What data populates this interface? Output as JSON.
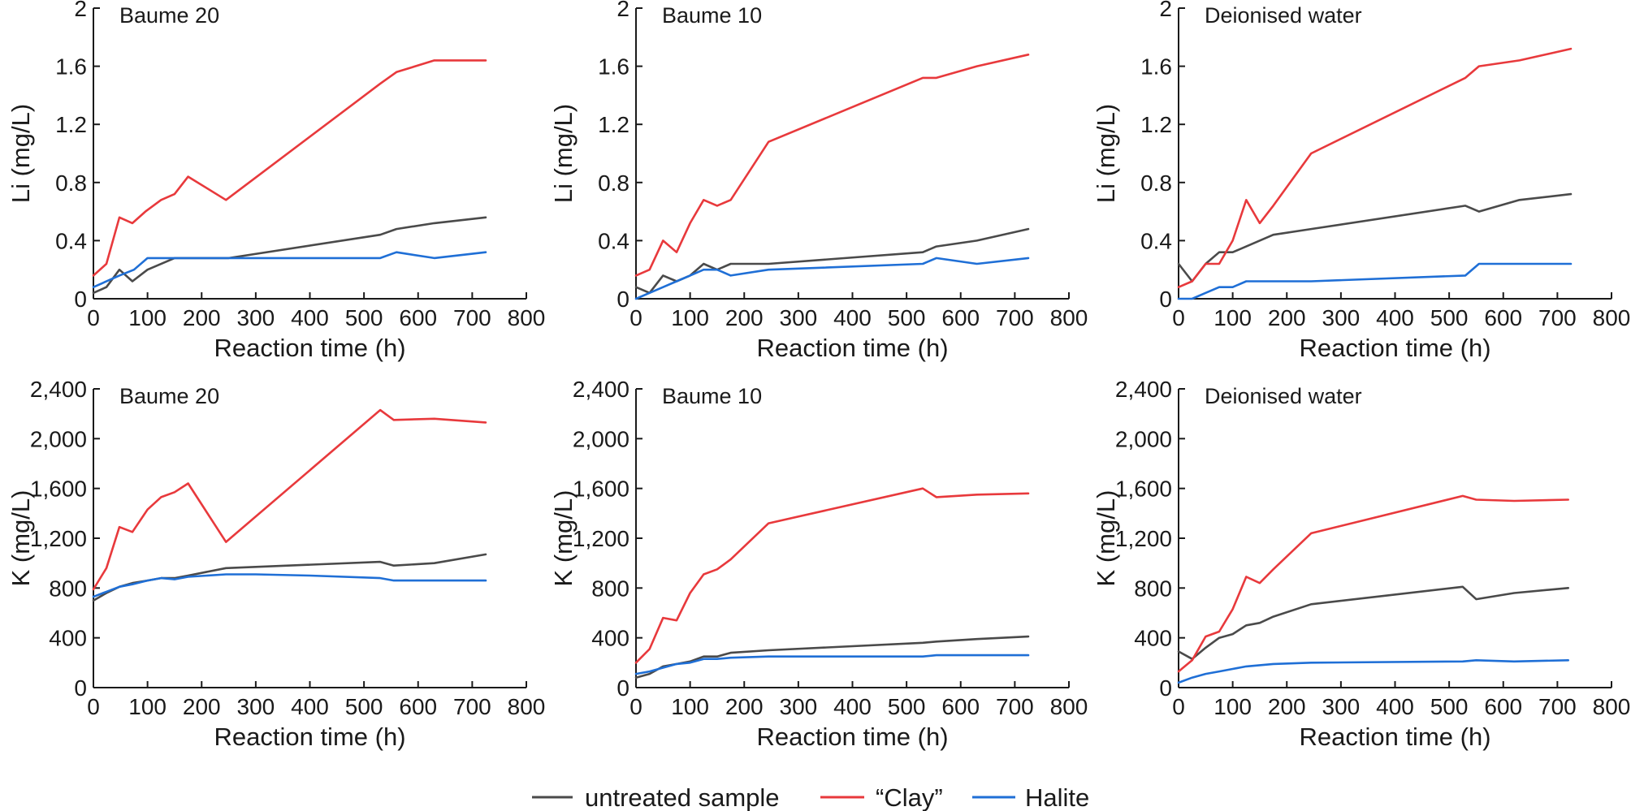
{
  "colors": {
    "untreated": "#4a4a4a",
    "clay": "#e8393c",
    "halite": "#1f6fd6",
    "axis": "#1a1a1a"
  },
  "legend": [
    {
      "key": "untreated",
      "label": "untreated sample"
    },
    {
      "key": "clay",
      "label": "“Clay”"
    },
    {
      "key": "halite",
      "label": "Halite"
    }
  ],
  "chart_data": [
    {
      "type": "line",
      "title": "Baume 20",
      "xlabel": "Reaction time (h)",
      "ylabel": "Li (mg/L)",
      "xlim": [
        0,
        800
      ],
      "ylim": [
        0,
        2
      ],
      "xticks": [
        "0",
        "100",
        "200",
        "300",
        "400",
        "500",
        "600",
        "700",
        "800"
      ],
      "yticks": [
        "0",
        "0.4",
        "0.8",
        "1.2",
        "1.6",
        "2"
      ],
      "series": [
        {
          "name": "untreated sample",
          "key": "untreated",
          "x": [
            0,
            24,
            48,
            72,
            100,
            150,
            250,
            530,
            560,
            630,
            725
          ],
          "y": [
            0.04,
            0.08,
            0.2,
            0.12,
            0.2,
            0.28,
            0.28,
            0.44,
            0.48,
            0.52,
            0.56
          ]
        },
        {
          "name": "“Clay”",
          "key": "clay",
          "x": [
            0,
            24,
            48,
            72,
            96,
            125,
            150,
            175,
            245,
            530,
            560,
            630,
            725
          ],
          "y": [
            0.16,
            0.24,
            0.56,
            0.52,
            0.6,
            0.68,
            0.72,
            0.84,
            0.68,
            1.48,
            1.56,
            1.64,
            1.64
          ]
        },
        {
          "name": "Halite",
          "key": "halite",
          "x": [
            0,
            48,
            75,
            100,
            150,
            250,
            530,
            560,
            630,
            725
          ],
          "y": [
            0.08,
            0.16,
            0.2,
            0.28,
            0.28,
            0.28,
            0.28,
            0.32,
            0.28,
            0.32
          ]
        }
      ]
    },
    {
      "type": "line",
      "title": "Baume 10",
      "xlabel": "Reaction time (h)",
      "ylabel": "Li (mg/L)",
      "xlim": [
        0,
        800
      ],
      "ylim": [
        0,
        2
      ],
      "xticks": [
        "0",
        "100",
        "200",
        "300",
        "400",
        "500",
        "600",
        "700",
        "800"
      ],
      "yticks": [
        "0",
        "0.4",
        "0.8",
        "1.2",
        "1.6",
        "2"
      ],
      "series": [
        {
          "name": "untreated sample",
          "key": "untreated",
          "x": [
            0,
            25,
            50,
            75,
            100,
            125,
            150,
            175,
            245,
            530,
            555,
            630,
            725
          ],
          "y": [
            0.08,
            0.04,
            0.16,
            0.12,
            0.16,
            0.24,
            0.2,
            0.24,
            0.24,
            0.32,
            0.36,
            0.4,
            0.48
          ]
        },
        {
          "name": "“Clay”",
          "key": "clay",
          "x": [
            0,
            25,
            50,
            75,
            100,
            125,
            150,
            175,
            245,
            530,
            555,
            630,
            725
          ],
          "y": [
            0.16,
            0.2,
            0.4,
            0.32,
            0.52,
            0.68,
            0.64,
            0.68,
            1.08,
            1.52,
            1.52,
            1.6,
            1.68
          ]
        },
        {
          "name": "Halite",
          "key": "halite",
          "x": [
            0,
            25,
            50,
            75,
            100,
            125,
            150,
            175,
            245,
            530,
            555,
            630,
            725
          ],
          "y": [
            0.0,
            0.04,
            0.08,
            0.12,
            0.16,
            0.2,
            0.2,
            0.16,
            0.2,
            0.24,
            0.28,
            0.24,
            0.28
          ]
        }
      ]
    },
    {
      "type": "line",
      "title": "Deionised water",
      "xlabel": "Reaction time (h)",
      "ylabel": "Li (mg/L)",
      "xlim": [
        0,
        800
      ],
      "ylim": [
        0,
        2
      ],
      "xticks": [
        "0",
        "100",
        "200",
        "300",
        "400",
        "500",
        "600",
        "700",
        "800"
      ],
      "yticks": [
        "0",
        "0.4",
        "0.8",
        "1.2",
        "1.6",
        "2"
      ],
      "series": [
        {
          "name": "untreated sample",
          "key": "untreated",
          "x": [
            0,
            25,
            50,
            75,
            100,
            125,
            175,
            245,
            530,
            555,
            630,
            725
          ],
          "y": [
            0.24,
            0.12,
            0.24,
            0.32,
            0.32,
            0.36,
            0.44,
            0.48,
            0.64,
            0.6,
            0.68,
            0.72
          ]
        },
        {
          "name": "“Clay”",
          "key": "clay",
          "x": [
            0,
            25,
            50,
            75,
            100,
            125,
            150,
            175,
            245,
            530,
            555,
            630,
            725
          ],
          "y": [
            0.08,
            0.12,
            0.24,
            0.24,
            0.4,
            0.68,
            0.52,
            0.64,
            1.0,
            1.52,
            1.6,
            1.64,
            1.72
          ]
        },
        {
          "name": "Halite",
          "key": "halite",
          "x": [
            0,
            25,
            50,
            75,
            100,
            125,
            150,
            175,
            245,
            530,
            555,
            630,
            725
          ],
          "y": [
            0.0,
            0.0,
            0.04,
            0.08,
            0.08,
            0.12,
            0.12,
            0.12,
            0.12,
            0.16,
            0.24,
            0.24,
            0.24
          ]
        }
      ]
    },
    {
      "type": "line",
      "title": "Baume 20",
      "xlabel": "Reaction time (h)",
      "ylabel": "K (mg/L)",
      "xlim": [
        0,
        800
      ],
      "ylim": [
        0,
        2400
      ],
      "xticks": [
        "0",
        "100",
        "200",
        "300",
        "400",
        "500",
        "600",
        "700",
        "800"
      ],
      "yticks": [
        "0",
        "400",
        "800",
        "1,200",
        "1,600",
        "2,000",
        "2,400"
      ],
      "series": [
        {
          "name": "untreated sample",
          "key": "untreated",
          "x": [
            0,
            24,
            48,
            72,
            100,
            125,
            150,
            175,
            245,
            530,
            555,
            630,
            725
          ],
          "y": [
            700,
            760,
            810,
            840,
            860,
            880,
            880,
            900,
            960,
            1010,
            980,
            1000,
            1070
          ]
        },
        {
          "name": "“Clay”",
          "key": "clay",
          "x": [
            0,
            24,
            48,
            72,
            100,
            125,
            150,
            175,
            245,
            530,
            555,
            630,
            725
          ],
          "y": [
            790,
            960,
            1290,
            1250,
            1430,
            1530,
            1570,
            1640,
            1170,
            2230,
            2150,
            2160,
            2130
          ]
        },
        {
          "name": "Halite",
          "key": "halite",
          "x": [
            0,
            24,
            48,
            72,
            100,
            125,
            150,
            175,
            245,
            300,
            400,
            530,
            555,
            630,
            725
          ],
          "y": [
            730,
            770,
            810,
            830,
            860,
            880,
            870,
            890,
            910,
            910,
            900,
            880,
            860,
            860,
            860
          ]
        }
      ]
    },
    {
      "type": "line",
      "title": "Baume 10",
      "xlabel": "Reaction time (h)",
      "ylabel": "K (mg/L)",
      "xlim": [
        0,
        800
      ],
      "ylim": [
        0,
        2400
      ],
      "xticks": [
        "0",
        "100",
        "200",
        "300",
        "400",
        "500",
        "600",
        "700",
        "800"
      ],
      "yticks": [
        "0",
        "400",
        "800",
        "1,200",
        "1,600",
        "2,000",
        "2,400"
      ],
      "series": [
        {
          "name": "untreated sample",
          "key": "untreated",
          "x": [
            0,
            25,
            50,
            75,
            100,
            125,
            150,
            175,
            245,
            530,
            555,
            630,
            725
          ],
          "y": [
            80,
            110,
            170,
            190,
            210,
            250,
            250,
            280,
            300,
            360,
            370,
            390,
            410
          ]
        },
        {
          "name": "“Clay”",
          "key": "clay",
          "x": [
            0,
            25,
            50,
            75,
            100,
            125,
            150,
            175,
            245,
            530,
            555,
            630,
            725
          ],
          "y": [
            200,
            310,
            560,
            540,
            760,
            910,
            950,
            1030,
            1320,
            1600,
            1530,
            1550,
            1560
          ]
        },
        {
          "name": "Halite",
          "key": "halite",
          "x": [
            0,
            25,
            50,
            75,
            100,
            125,
            150,
            175,
            245,
            530,
            555,
            630,
            725
          ],
          "y": [
            110,
            130,
            160,
            190,
            200,
            230,
            230,
            240,
            250,
            250,
            260,
            260,
            260
          ]
        }
      ]
    },
    {
      "type": "line",
      "title": "Deionised water",
      "xlabel": "Reaction time (h)",
      "ylabel": "K (mg/L)",
      "xlim": [
        0,
        800
      ],
      "ylim": [
        0,
        2400
      ],
      "xticks": [
        "0",
        "100",
        "200",
        "300",
        "400",
        "500",
        "600",
        "700",
        "800"
      ],
      "yticks": [
        "0",
        "400",
        "800",
        "1,200",
        "1,600",
        "2,000",
        "2,400"
      ],
      "series": [
        {
          "name": "untreated sample",
          "key": "untreated",
          "x": [
            0,
            25,
            50,
            75,
            100,
            125,
            150,
            175,
            245,
            525,
            550,
            620,
            720
          ],
          "y": [
            290,
            230,
            320,
            400,
            430,
            500,
            520,
            570,
            670,
            810,
            710,
            760,
            800
          ]
        },
        {
          "name": "“Clay”",
          "key": "clay",
          "x": [
            0,
            25,
            50,
            75,
            100,
            125,
            150,
            175,
            245,
            525,
            550,
            620,
            720
          ],
          "y": [
            130,
            220,
            410,
            450,
            630,
            890,
            840,
            950,
            1240,
            1540,
            1510,
            1500,
            1510
          ]
        },
        {
          "name": "Halite",
          "key": "halite",
          "x": [
            0,
            25,
            50,
            75,
            100,
            125,
            150,
            175,
            245,
            525,
            550,
            620,
            720
          ],
          "y": [
            40,
            80,
            110,
            130,
            150,
            170,
            180,
            190,
            200,
            210,
            220,
            210,
            220
          ]
        }
      ]
    }
  ]
}
